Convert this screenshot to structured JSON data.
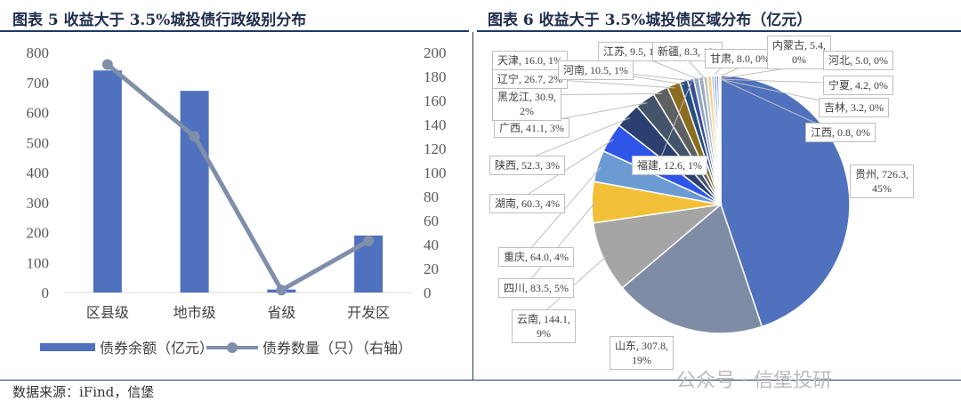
{
  "left_title": "图表 5 收益大于 3.5%城投债行政级别分布",
  "right_title": "图表 6 收益大于 3.5%城投债区域分布（亿元）",
  "footer": "数据来源：iFind，信堡",
  "watermark": "公众号 · 信堡投研",
  "chart_data": [
    {
      "type": "bar+line",
      "categories": [
        "区县级",
        "地市级",
        "省级",
        "开发区"
      ],
      "series": [
        {
          "name": "债券余额（亿元）",
          "type": "bar",
          "axis": "left",
          "values": [
            740,
            672,
            10,
            190
          ],
          "color": "#4f71be"
        },
        {
          "name": "债券数量（只）（右轴）",
          "type": "line",
          "axis": "right",
          "values": [
            190,
            130,
            2,
            43
          ],
          "color": "#7f8fa9"
        }
      ],
      "left_ylim": [
        0,
        800
      ],
      "left_ticks": [
        "0",
        "100",
        "200",
        "300",
        "400",
        "500",
        "600",
        "700",
        "800"
      ],
      "right_ylim": [
        0,
        200
      ],
      "right_ticks": [
        "0",
        "20",
        "40",
        "60",
        "80",
        "100",
        "120",
        "140",
        "160",
        "180",
        "200"
      ],
      "legend": "bottom"
    },
    {
      "type": "pie",
      "slices": [
        {
          "name": "贵州",
          "value": 726.3,
          "pct": "45%",
          "color": "#4f71be"
        },
        {
          "name": "山东",
          "value": 307.8,
          "pct": "19%",
          "color": "#7f8ca6"
        },
        {
          "name": "云南",
          "value": 144.1,
          "pct": "9%",
          "color": "#a5a5a5"
        },
        {
          "name": "四川",
          "value": 83.5,
          "pct": "5%",
          "color": "#f2c037"
        },
        {
          "name": "重庆",
          "value": 64.0,
          "pct": "4%",
          "color": "#6b9bd2"
        },
        {
          "name": "湖南",
          "value": 60.3,
          "pct": "4%",
          "color": "#2f55e8"
        },
        {
          "name": "陕西",
          "value": 52.3,
          "pct": "3%",
          "color": "#2b3f70"
        },
        {
          "name": "广西",
          "value": 41.1,
          "pct": "3%",
          "color": "#44546a"
        },
        {
          "name": "黑龙江",
          "value": 30.9,
          "pct": "2%",
          "color": "#5f6062"
        },
        {
          "name": "辽宁",
          "value": 26.7,
          "pct": "2%",
          "color": "#8c6d1f"
        },
        {
          "name": "天津",
          "value": 16.0,
          "pct": "1%",
          "color": "#264f80"
        },
        {
          "name": "福建",
          "value": 12.6,
          "pct": "1%",
          "color": "#3a4f9a"
        },
        {
          "name": "河南",
          "value": 10.5,
          "pct": "1%",
          "color": "#8fa3c8"
        },
        {
          "name": "江苏",
          "value": 9.5,
          "pct": "1%",
          "color": "#9aa8bd"
        },
        {
          "name": "新疆",
          "value": 8.3,
          "pct": "1%",
          "color": "#c7c7c7"
        },
        {
          "name": "甘肃",
          "value": 8.0,
          "pct": "0%",
          "color": "#f7d27a"
        },
        {
          "name": "内蒙古",
          "value": 5.4,
          "pct": "0%",
          "color": "#a4c2e6"
        },
        {
          "name": "河北",
          "value": 5.0,
          "pct": "0%",
          "color": "#6d8bf0"
        },
        {
          "name": "宁夏",
          "value": 4.2,
          "pct": "0%",
          "color": "#4a6aa8"
        },
        {
          "name": "吉林",
          "value": 3.2,
          "pct": "0%",
          "color": "#6b7d98"
        },
        {
          "name": "江西",
          "value": 0.8,
          "pct": "0%",
          "color": "#888888"
        }
      ]
    }
  ]
}
